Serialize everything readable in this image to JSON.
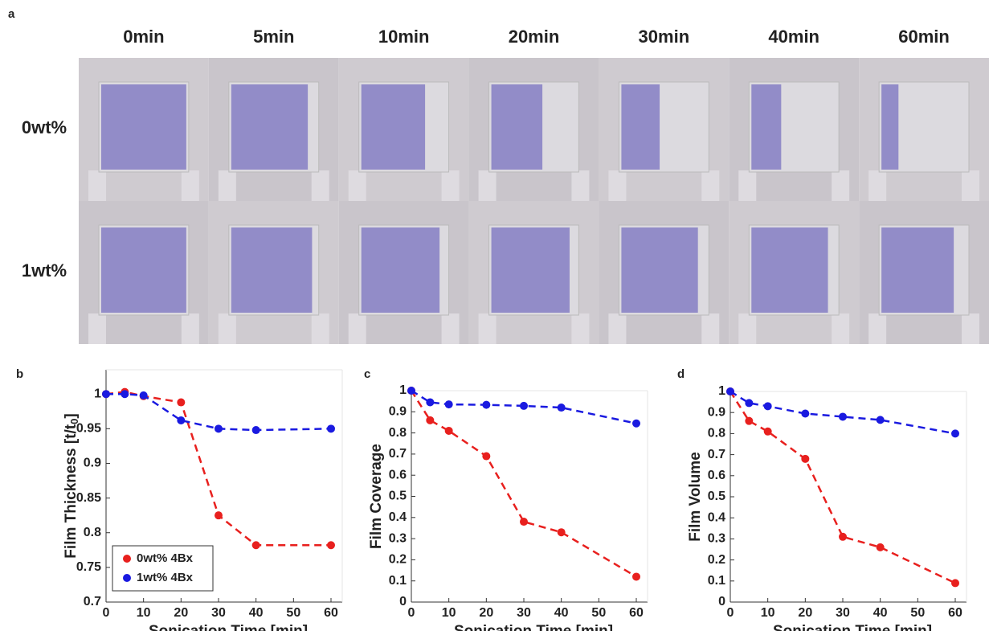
{
  "panel_a": {
    "label": "a",
    "columns": [
      "0min",
      "5min",
      "10min",
      "20min",
      "30min",
      "40min",
      "60min"
    ],
    "rows": [
      "0wt%",
      "1wt%"
    ]
  },
  "chart_data": [
    {
      "type": "line",
      "panel": "b",
      "xlabel": "Sonication Time [min]",
      "ylabel": "Film Thickness [t/t",
      "ylabel_sub": "0",
      "ylabel_end": "]",
      "x": [
        0,
        5,
        10,
        20,
        30,
        40,
        60
      ],
      "xlim": [
        0,
        63
      ],
      "xticks": [
        0,
        10,
        20,
        30,
        40,
        50,
        60
      ],
      "ylim": [
        0.7,
        1.035
      ],
      "yticks": [
        0.7,
        0.75,
        0.8,
        0.85,
        0.9,
        0.95,
        1
      ],
      "legend": "lower left",
      "series": [
        {
          "name": "0wt% 4Bx",
          "color": "#e8201e",
          "values": [
            1,
            1.003,
            0.997,
            0.988,
            0.825,
            0.782,
            0.782
          ]
        },
        {
          "name": "1wt% 4Bx",
          "color": "#1a1ae0",
          "values": [
            1,
            1,
            0.998,
            0.962,
            0.95,
            0.948,
            0.95
          ]
        }
      ]
    },
    {
      "type": "line",
      "panel": "c",
      "xlabel": "Sonication Time [min]",
      "ylabel": "Film Coverage",
      "x": [
        0,
        5,
        10,
        20,
        30,
        40,
        60
      ],
      "xlim": [
        0,
        63
      ],
      "xticks": [
        0,
        10,
        20,
        30,
        40,
        50,
        60
      ],
      "ylim": [
        0,
        1
      ],
      "yticks": [
        0,
        0.1,
        0.2,
        0.3,
        0.4,
        0.5,
        0.6,
        0.7,
        0.8,
        0.9,
        1
      ],
      "series": [
        {
          "color": "#e8201e",
          "values": [
            1,
            0.86,
            0.81,
            0.69,
            0.38,
            0.33,
            0.12
          ]
        },
        {
          "color": "#1a1ae0",
          "values": [
            1,
            0.945,
            0.935,
            0.933,
            0.928,
            0.92,
            0.845
          ]
        }
      ]
    },
    {
      "type": "line",
      "panel": "d",
      "xlabel": "Sonication Time [min]",
      "ylabel": "Film Volume",
      "x": [
        0,
        5,
        10,
        20,
        30,
        40,
        60
      ],
      "xlim": [
        0,
        63
      ],
      "xticks": [
        0,
        10,
        20,
        30,
        40,
        50,
        60
      ],
      "ylim": [
        0,
        1
      ],
      "yticks": [
        0,
        0.1,
        0.2,
        0.3,
        0.4,
        0.5,
        0.6,
        0.7,
        0.8,
        0.9,
        1
      ],
      "series": [
        {
          "color": "#e8201e",
          "values": [
            1,
            0.86,
            0.81,
            0.68,
            0.31,
            0.26,
            0.09
          ]
        },
        {
          "color": "#1a1ae0",
          "values": [
            1,
            0.945,
            0.93,
            0.895,
            0.88,
            0.865,
            0.8
          ]
        }
      ]
    }
  ]
}
